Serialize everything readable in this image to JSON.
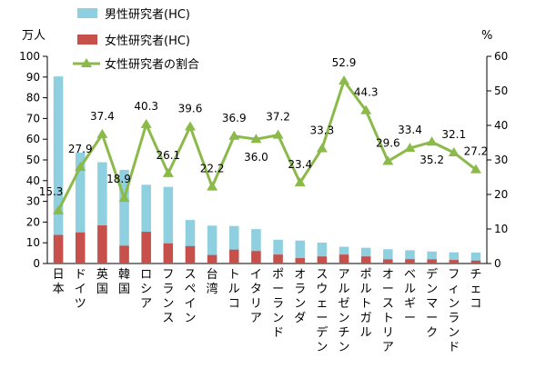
{
  "chart_data": {
    "type": "bar",
    "categories": [
      "日本",
      "ドイツ",
      "英国",
      "韓国",
      "ロシア",
      "フランス",
      "スペイン",
      "台湾",
      "トルコ",
      "イタリア",
      "ポーランド",
      "オランダ",
      "スウェーデン",
      "アルゼンチン",
      "ポルトガル",
      "オーストリア",
      "ベルギー",
      "デンマーク",
      "フィンランド",
      "チェコ"
    ],
    "series": [
      {
        "name": "男性研究者(HC)",
        "type": "bar",
        "axis": "left",
        "color": "#8ecfe0",
        "values": [
          90.3,
          53.5,
          48.9,
          45.2,
          38.0,
          37.0,
          21.0,
          18.3,
          18.1,
          16.6,
          11.5,
          11.1,
          10.1,
          8.1,
          7.6,
          6.9,
          6.4,
          5.8,
          5.4,
          5.3
        ]
      },
      {
        "name": "女性研究者(HC)",
        "type": "bar",
        "axis": "left",
        "color": "#c8504a",
        "values": [
          13.8,
          15.0,
          18.4,
          8.6,
          15.3,
          9.7,
          8.4,
          4.1,
          6.7,
          6.0,
          4.3,
          2.6,
          3.4,
          4.3,
          3.4,
          2.0,
          2.1,
          2.0,
          1.7,
          1.4
        ]
      },
      {
        "name": "女性研究者の割合",
        "type": "line",
        "axis": "right",
        "color": "#8bb94a",
        "values": [
          15.3,
          27.9,
          37.4,
          18.9,
          40.3,
          26.1,
          39.6,
          22.2,
          36.9,
          36.0,
          37.2,
          23.4,
          33.3,
          52.9,
          44.3,
          29.6,
          33.4,
          35.2,
          32.1,
          27.2
        ],
        "labels": [
          "15.3",
          "27.9",
          "37.4",
          "18.9",
          "40.3",
          "26.1",
          "39.6",
          "22.2",
          "36.9",
          "36.0",
          "37.2",
          "23.4",
          "33.3",
          "52.9",
          "44.3",
          "29.6",
          "33.4",
          "35.2",
          "32.1",
          "27.2"
        ]
      }
    ],
    "ylim_left": [
      0,
      100
    ],
    "ylim_right": [
      0,
      60
    ],
    "yticks_left": [
      "0",
      "10",
      "20",
      "30",
      "40",
      "50",
      "60",
      "70",
      "80",
      "90",
      "100"
    ],
    "yticks_right": [
      "0",
      "10",
      "20",
      "30",
      "40",
      "50",
      "60"
    ],
    "ylabel_left": "万人",
    "ylabel_right": "%",
    "legend": "top-left"
  }
}
